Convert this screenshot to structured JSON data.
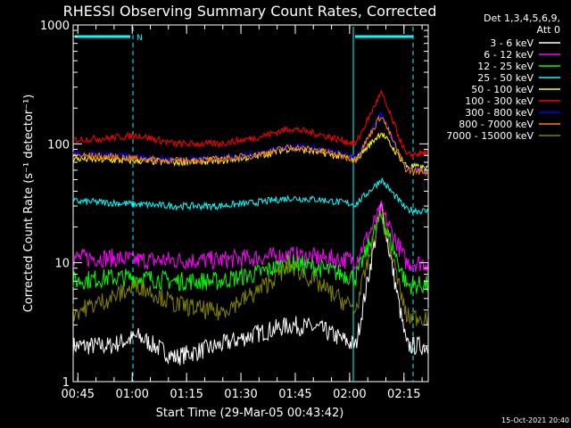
{
  "chart_data": {
    "type": "line",
    "title": "RHESSI Observing Summary Count Rates, Corrected",
    "xlabel": "Start Time (29-Mar-05 00:43:42)",
    "ylabel": "Corrected Count Rate (s⁻¹ detector⁻¹)",
    "y_scale": "log",
    "ylim": [
      1,
      1000
    ],
    "xlim_minutes_after_0043": [
      0,
      98
    ],
    "x_ticks": [
      "00:45",
      "01:00",
      "01:15",
      "01:30",
      "01:45",
      "02:00",
      "02:15"
    ],
    "y_ticks": [
      "1",
      "10",
      "100",
      "1000"
    ],
    "legend_header": [
      "Det 1,3,4,5,6,9,",
      "Att 0"
    ],
    "legend_position": "right",
    "annotations": [
      "N"
    ],
    "timestamp": "15-Oct-2021 20:40",
    "series": [
      {
        "name": "3 - 6 keV",
        "color": "#ffffff",
        "values": [
          2,
          2,
          2.4,
          1.6,
          2,
          2.5,
          3,
          2.8,
          2,
          30,
          2,
          2
        ]
      },
      {
        "name": "6 - 12 keV",
        "color": "#ff00ff",
        "values": [
          11,
          11,
          10.5,
          10.5,
          10.5,
          11,
          11.5,
          11,
          10.5,
          28,
          10,
          10
        ]
      },
      {
        "name": "12 - 25 keV",
        "color": "#00ff00",
        "values": [
          7,
          7.5,
          7.5,
          7,
          7,
          8,
          10,
          9,
          7.5,
          25,
          6.5,
          6.5
        ]
      },
      {
        "name": "25 - 50 keV",
        "color": "#00ffff",
        "values": [
          33,
          32,
          31,
          30,
          30,
          32,
          35,
          34,
          31,
          50,
          28,
          27
        ]
      },
      {
        "name": "50 - 100 keV",
        "color": "#ffff00",
        "values": [
          75,
          73,
          72,
          70,
          72,
          78,
          92,
          85,
          74,
          125,
          65,
          62
        ]
      },
      {
        "name": "100 - 300 keV",
        "color": "#ff0000",
        "values": [
          108,
          112,
          118,
          100,
          100,
          112,
          135,
          120,
          100,
          270,
          80,
          85
        ]
      },
      {
        "name": "300 - 800 keV",
        "color": "#0000ff",
        "values": [
          82,
          80,
          77,
          74,
          76,
          82,
          96,
          90,
          76,
          180,
          62,
          60
        ]
      },
      {
        "name": "800 - 7000 keV",
        "color": "#ff8000",
        "values": [
          80,
          78,
          75,
          72,
          74,
          80,
          94,
          88,
          74,
          175,
          60,
          58
        ]
      },
      {
        "name": "7000 - 15000 keV",
        "color": "#808000",
        "values": [
          3.8,
          5,
          6.5,
          4.5,
          3.8,
          5.5,
          9.5,
          6.5,
          4,
          28,
          3.5,
          3.5
        ]
      }
    ],
    "x_minutes": [
      0,
      10,
      18,
      28,
      40,
      50,
      60,
      68,
      78,
      85,
      92,
      98
    ]
  }
}
